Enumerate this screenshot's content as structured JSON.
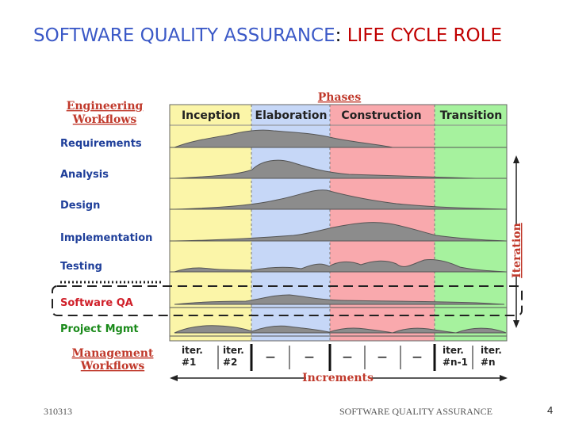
{
  "slide": {
    "title_part1": "SOFTWARE QUALITY ASSURANCE",
    "title_sep": ":",
    "title_part2": "LIFE CYCLE ROLE",
    "footer_left": "310313",
    "footer_center": "SOFTWARE QUALITY ASSURANCE",
    "page_number": "4"
  },
  "diagram": {
    "phases_label": "Phases",
    "eng_workflows_line1": "Engineering",
    "eng_workflows_line2": "Workflows",
    "mgmt_workflows_line1": "Management",
    "mgmt_workflows_line2": "Workflows",
    "phases": [
      {
        "name": "Inception",
        "color": "#fbf5a8"
      },
      {
        "name": "Elaboration",
        "color": "#c6d7f7"
      },
      {
        "name": "Construction",
        "color": "#f9a9ad"
      },
      {
        "name": "Transition",
        "color": "#a6f29e"
      }
    ],
    "workflows": [
      {
        "name": "Requirements",
        "color": "#1f3f9a"
      },
      {
        "name": "Analysis",
        "color": "#1f3f9a"
      },
      {
        "name": "Design",
        "color": "#1f3f9a"
      },
      {
        "name": "Implementation",
        "color": "#1f3f9a"
      },
      {
        "name": "Testing",
        "color": "#1f3f9a"
      },
      {
        "name": "Software QA",
        "color": "#d0202a"
      },
      {
        "name": "Project Mgmt",
        "color": "#1a8a1a"
      }
    ],
    "iterations": [
      {
        "line1": "iter.",
        "line2": "#1"
      },
      {
        "line1": "iter.",
        "line2": "#2"
      },
      {
        "line1": "—",
        "line2": ""
      },
      {
        "line1": "—",
        "line2": ""
      },
      {
        "line1": "—",
        "line2": ""
      },
      {
        "line1": "—",
        "line2": ""
      },
      {
        "line1": "—",
        "line2": ""
      },
      {
        "line1": "iter.",
        "line2": "#n-1"
      },
      {
        "line1": "iter.",
        "line2": "#n"
      }
    ],
    "iteration_axis_label": "Iteration",
    "increments_label": "Increments"
  }
}
